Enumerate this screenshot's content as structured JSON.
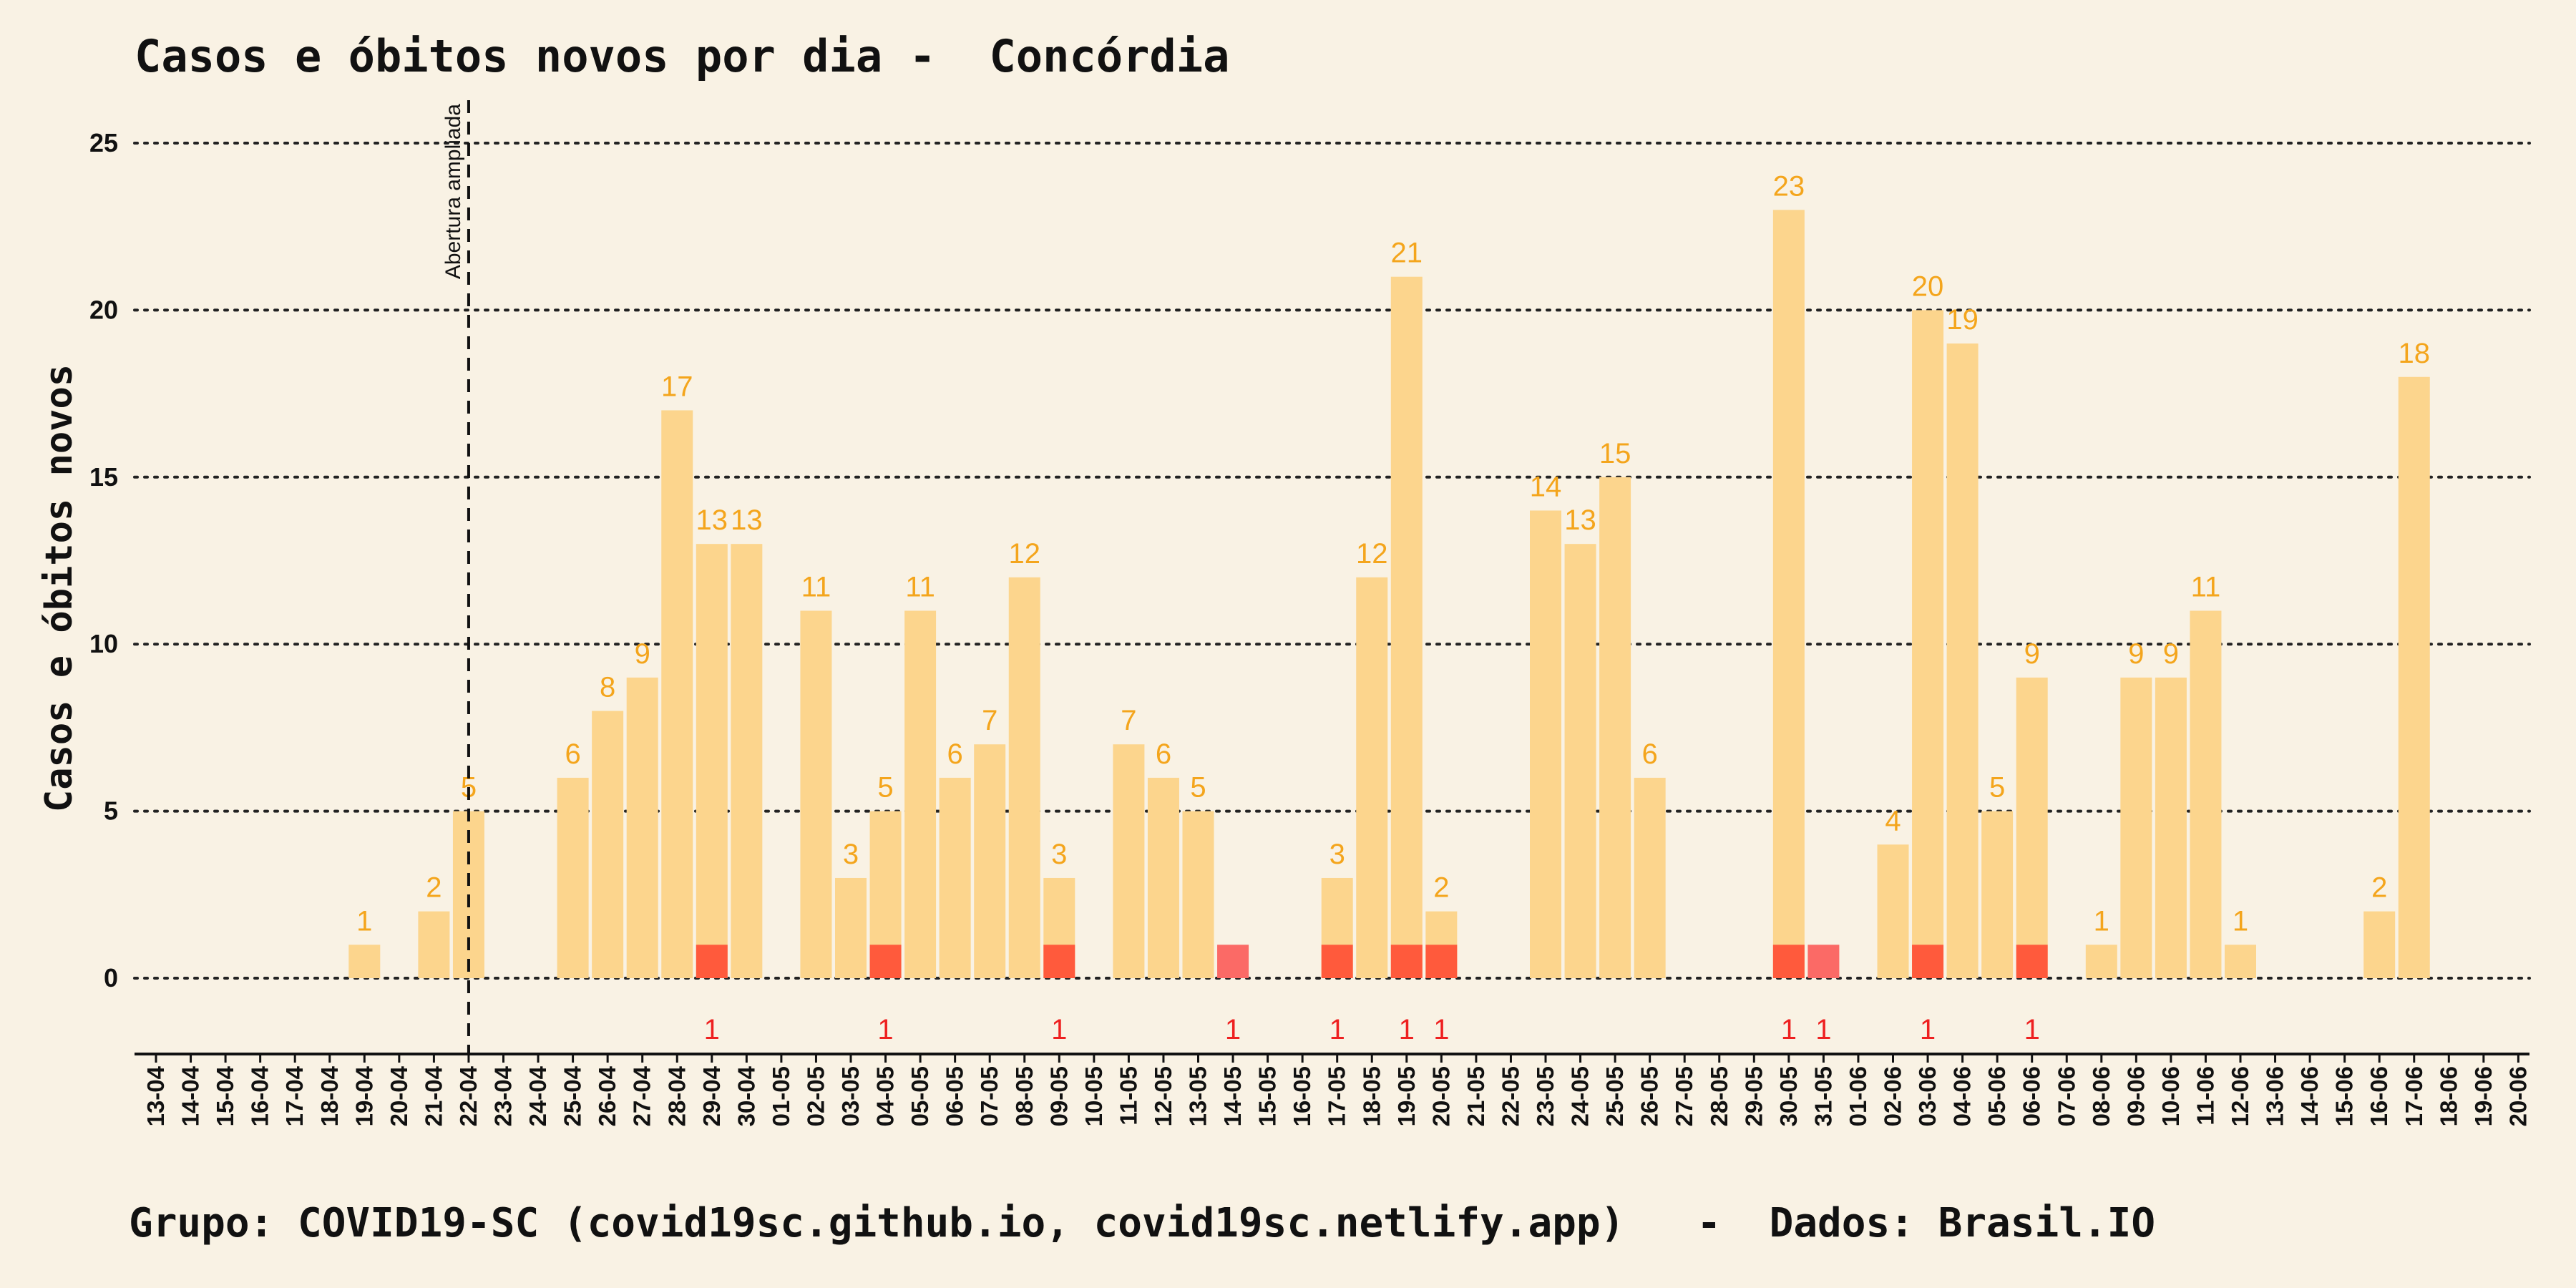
{
  "chart_data": {
    "type": "bar",
    "title": "Casos e óbitos novos por dia -  Concórdia",
    "ylabel": "Casos e óbitos novos",
    "xlabel": "",
    "ylim": [
      -2.3,
      26
    ],
    "yticks": [
      0,
      5,
      10,
      15,
      20,
      25
    ],
    "grid": "horizontal dotted",
    "categories": [
      "13-04",
      "14-04",
      "15-04",
      "16-04",
      "17-04",
      "18-04",
      "19-04",
      "20-04",
      "21-04",
      "22-04",
      "23-04",
      "24-04",
      "25-04",
      "26-04",
      "27-04",
      "28-04",
      "29-04",
      "30-04",
      "01-05",
      "02-05",
      "03-05",
      "04-05",
      "05-05",
      "06-05",
      "07-05",
      "08-05",
      "09-05",
      "10-05",
      "11-05",
      "12-05",
      "13-05",
      "14-05",
      "15-05",
      "16-05",
      "17-05",
      "18-05",
      "19-05",
      "20-05",
      "21-05",
      "22-05",
      "23-05",
      "24-05",
      "25-05",
      "26-05",
      "27-05",
      "28-05",
      "29-05",
      "30-05",
      "31-05",
      "01-06",
      "02-06",
      "03-06",
      "04-06",
      "05-06",
      "06-06",
      "07-06",
      "08-06",
      "09-06",
      "10-06",
      "11-06",
      "12-06",
      "13-06",
      "14-06",
      "15-06",
      "16-06",
      "17-06",
      "18-06",
      "19-06",
      "20-06"
    ],
    "series": [
      {
        "values": [
          0,
          0,
          0,
          0,
          0,
          0,
          1,
          0,
          2,
          5,
          0,
          0,
          6,
          8,
          9,
          17,
          13,
          13,
          0,
          11,
          3,
          5,
          11,
          6,
          7,
          12,
          3,
          0,
          7,
          6,
          5,
          0,
          0,
          0,
          3,
          12,
          21,
          2,
          0,
          0,
          14,
          13,
          15,
          6,
          0,
          0,
          0,
          23,
          0,
          0,
          4,
          20,
          19,
          5,
          9,
          0,
          1,
          9,
          9,
          11,
          1,
          0,
          0,
          0,
          2,
          18,
          0,
          0,
          0
        ]
      },
      {
        "values": [
          0,
          0,
          0,
          0,
          0,
          0,
          0,
          0,
          0,
          0,
          0,
          0,
          0,
          0,
          0,
          0,
          1,
          0,
          0,
          0,
          0,
          1,
          0,
          0,
          0,
          0,
          1,
          0,
          0,
          0,
          0,
          1,
          0,
          0,
          1,
          0,
          1,
          1,
          0,
          0,
          0,
          0,
          0,
          0,
          0,
          0,
          0,
          1,
          1,
          0,
          0,
          1,
          0,
          0,
          1,
          0,
          0,
          0,
          0,
          0,
          0,
          0,
          0,
          0,
          0,
          0,
          0,
          0,
          0
        ]
      }
    ],
    "annotations": [
      {
        "x": "22-04",
        "label": "Abertura ampliada"
      }
    ],
    "colors": {
      "background": "#f9f2e4",
      "cases_bar": "#fcd58d",
      "cases_label": "#f4a51c",
      "deaths_bar": "#ff5a3c",
      "deaths_bar_alt": "#fb6a66",
      "deaths_label": "#ee2020",
      "grid": "#222222",
      "text": "#111111"
    }
  },
  "footer": "Grupo: COVID19-SC (covid19sc.github.io, covid19sc.netlify.app)   -  Dados: Brasil.IO"
}
